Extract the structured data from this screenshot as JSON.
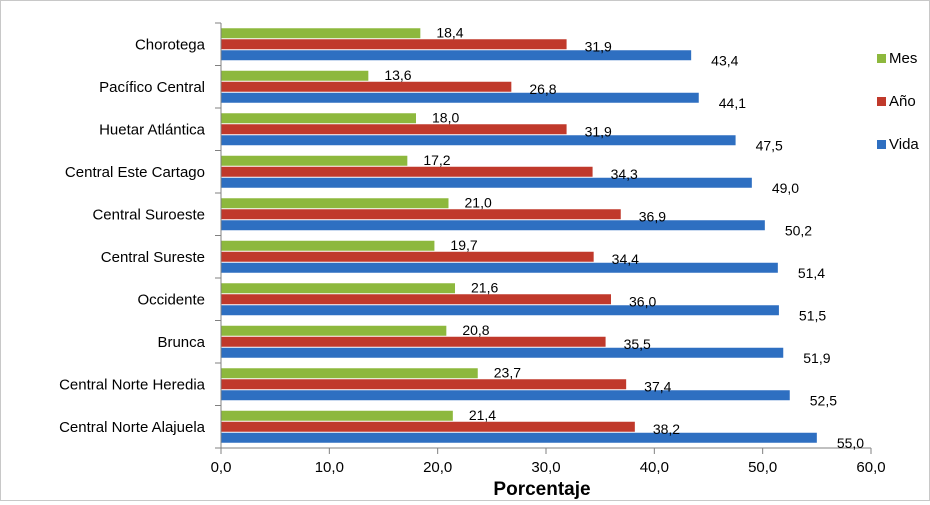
{
  "chart_data": {
    "type": "bar",
    "orientation": "horizontal",
    "title": "",
    "xlabel": "Porcentaje",
    "ylabel": "",
    "xlim": [
      0,
      60
    ],
    "x_ticks": [
      "0,0",
      "10,0",
      "20,0",
      "30,0",
      "40,0",
      "50,0",
      "60,0"
    ],
    "grid": false,
    "legend_position": "right",
    "categories": [
      "Chorotega",
      "Pacífico Central",
      "Huetar Atlántica",
      "Central Este Cartago",
      "Central Suroeste",
      "Central Sureste",
      "Occidente",
      "Brunca",
      "Central Norte Heredia",
      "Central Norte Alajuela"
    ],
    "series": [
      {
        "name": "Mes",
        "color": "#8db83d",
        "values": [
          18.4,
          13.6,
          18.0,
          17.2,
          21.0,
          19.7,
          21.6,
          20.8,
          23.7,
          21.4
        ],
        "labels": [
          "18,4",
          "13,6",
          "18,0",
          "17,2",
          "21,0",
          "19,7",
          "21,6",
          "20,8",
          "23,7",
          "21,4"
        ]
      },
      {
        "name": "Año",
        "color": "#c0392b",
        "values": [
          31.9,
          26.8,
          31.9,
          34.3,
          36.9,
          34.4,
          36.0,
          35.5,
          37.4,
          38.2
        ],
        "labels": [
          "31,9",
          "26,8",
          "31,9",
          "34,3",
          "36,9",
          "34,4",
          "36,0",
          "35,5",
          "37,4",
          "38,2"
        ]
      },
      {
        "name": "Vida",
        "color": "#2e6fc1",
        "values": [
          43.4,
          44.1,
          47.5,
          49.0,
          50.2,
          51.4,
          51.5,
          51.9,
          52.5,
          55.0
        ],
        "labels": [
          "43,4",
          "44,1",
          "47,5",
          "49,0",
          "50,2",
          "51,4",
          "51,5",
          "51,9",
          "52,5",
          "55,0"
        ]
      }
    ]
  }
}
